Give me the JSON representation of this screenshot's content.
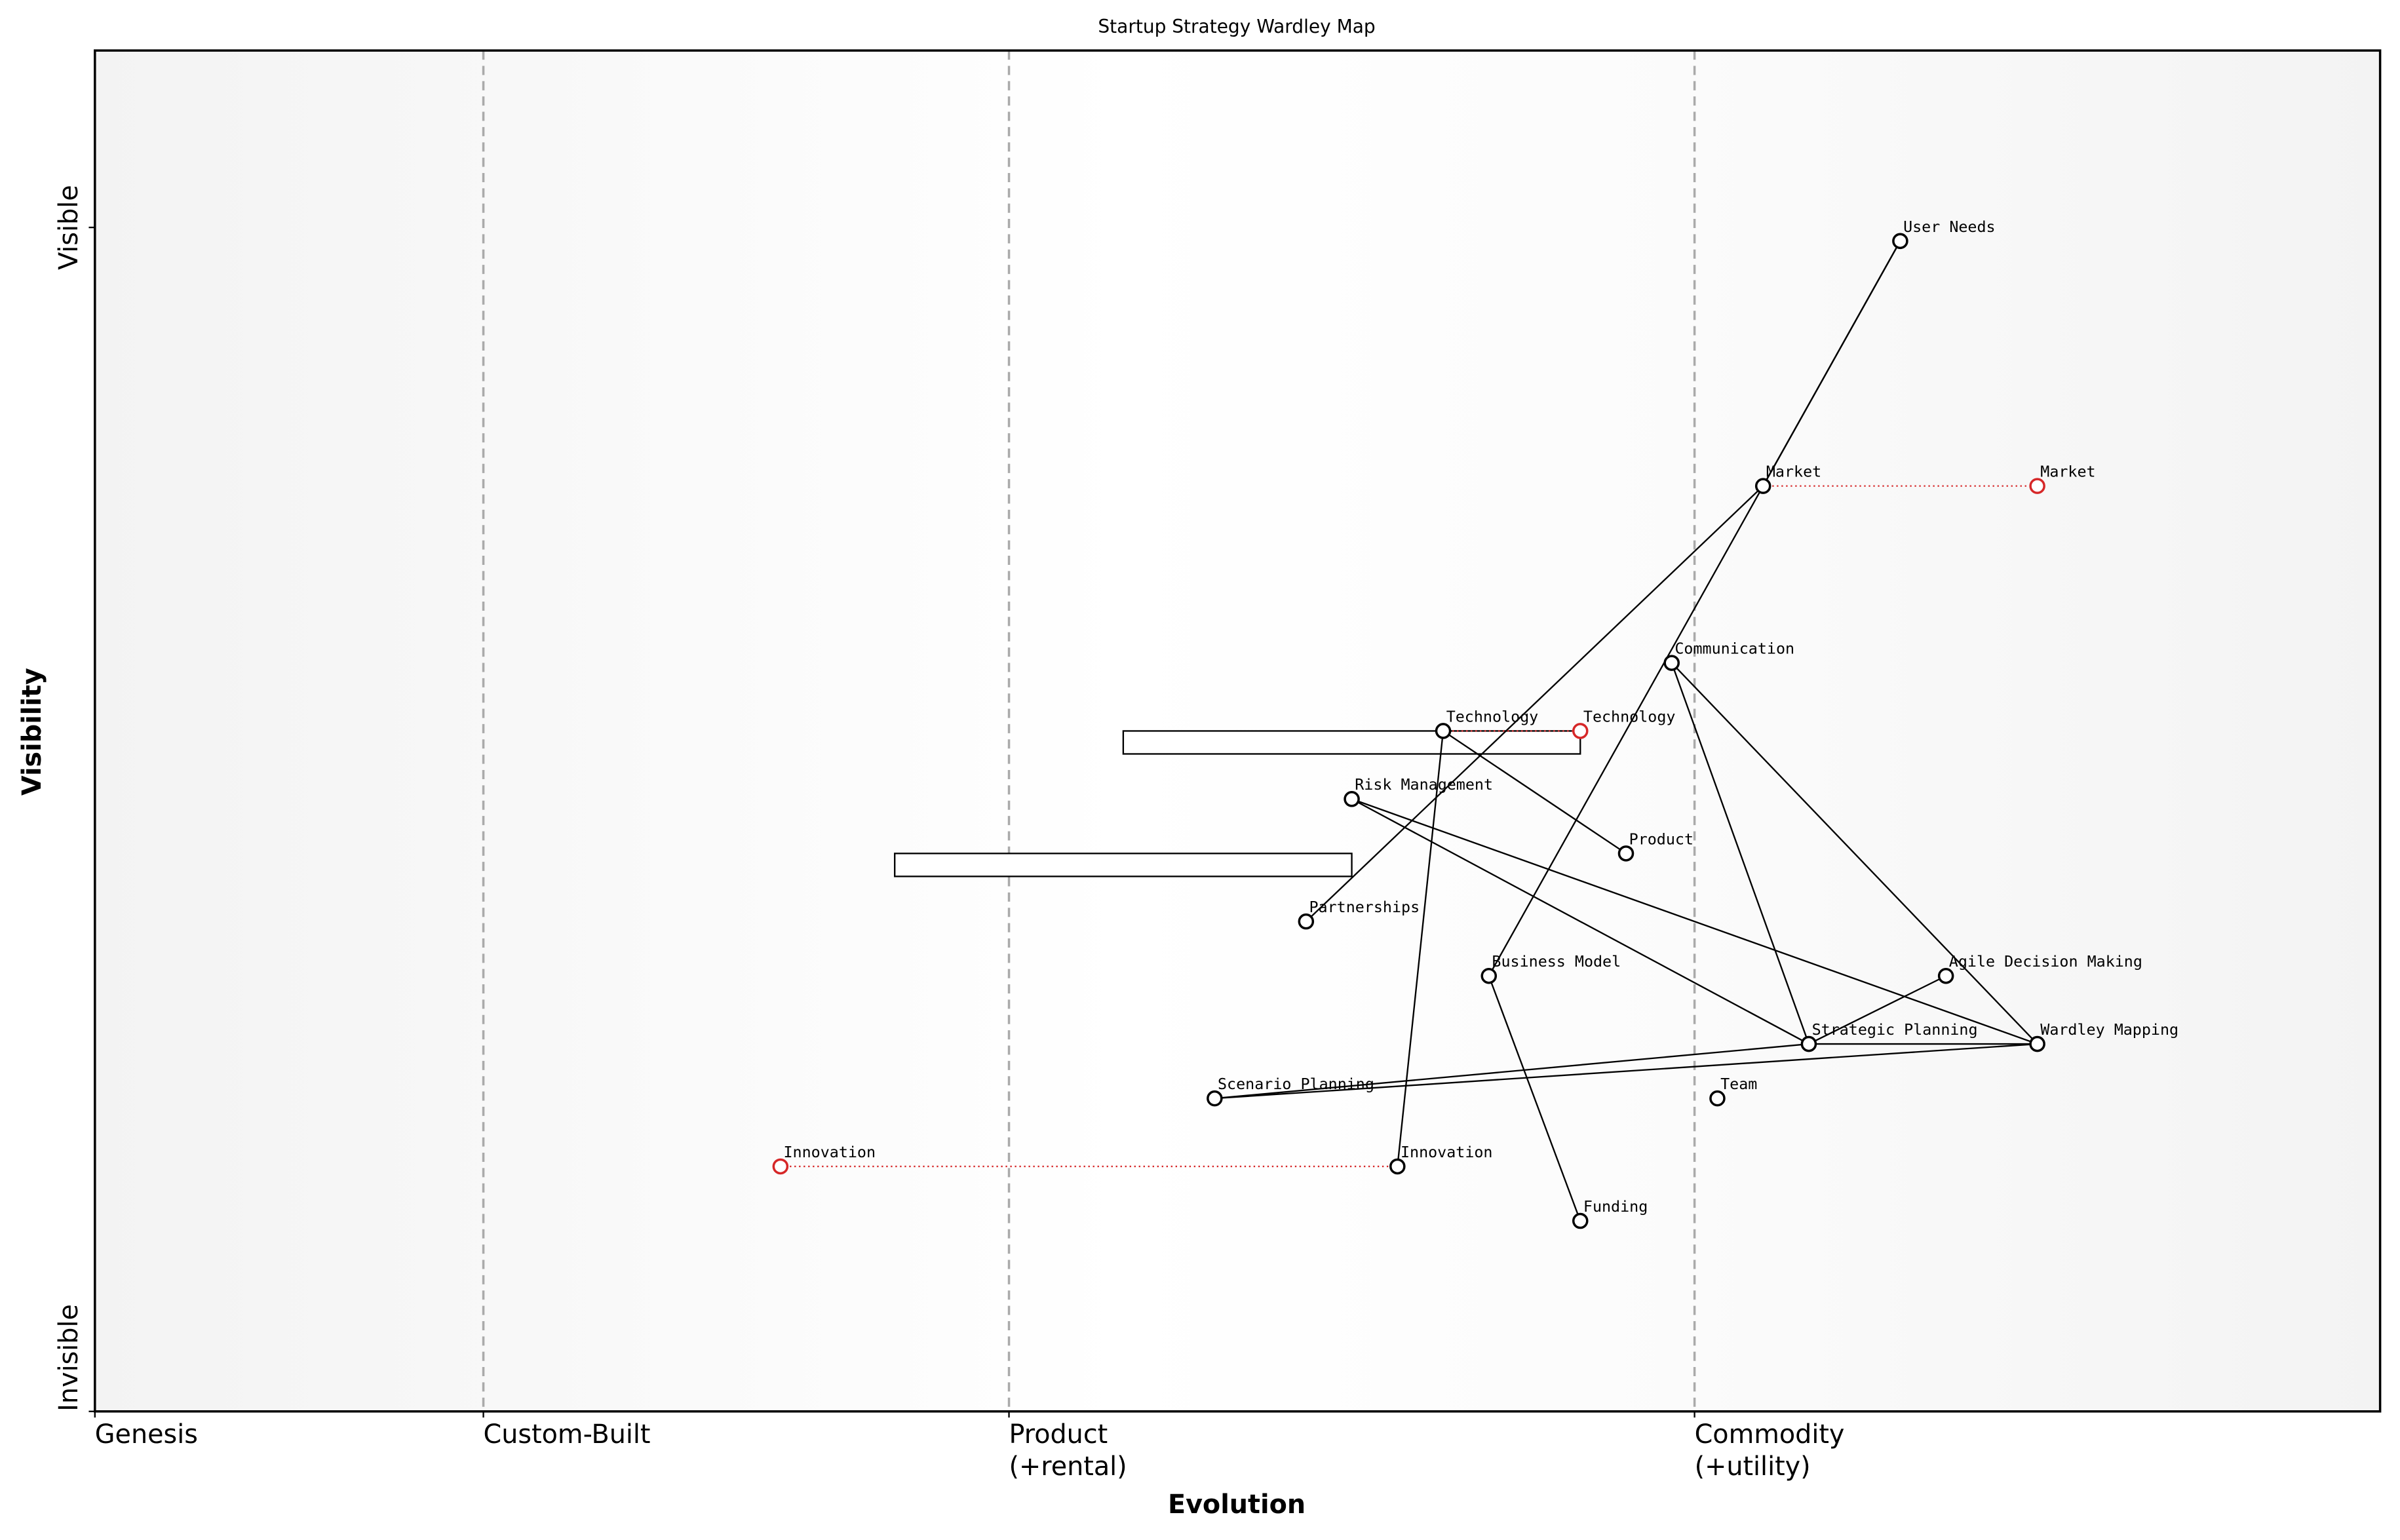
{
  "chart_data": {
    "type": "wardley",
    "title": "Startup Strategy Wardley Map",
    "xlabel": "Evolution",
    "ylabel": "Visibility",
    "xlim": [
      0,
      1
    ],
    "ylim": [
      0,
      1
    ],
    "xticks": [
      {
        "value": 0,
        "label": [
          "Genesis"
        ]
      },
      {
        "value": 0.17,
        "label": [
          "Custom-Built"
        ]
      },
      {
        "value": 0.4,
        "label": [
          "Product",
          "(+rental)"
        ]
      },
      {
        "value": 0.7,
        "label": [
          "Commodity",
          "(+utility)"
        ]
      }
    ],
    "yticks": [
      {
        "value": 0,
        "label": "Invisible"
      },
      {
        "value": 0.87,
        "label": "Visible"
      }
    ],
    "stage_lines": [
      0.17,
      0.4,
      0.7
    ],
    "evolve_color": "#d62728",
    "components": [
      {
        "name": "User Needs",
        "evolution": 0.79,
        "visibility": 0.86
      },
      {
        "name": "Market",
        "evolution": 0.73,
        "visibility": 0.68,
        "evolve_to": 0.85
      },
      {
        "name": "Communication",
        "evolution": 0.69,
        "visibility": 0.55
      },
      {
        "name": "Technology",
        "evolution": 0.59,
        "visibility": 0.5,
        "evolve_to": 0.65,
        "pipeline": [
          0.45,
          0.65
        ]
      },
      {
        "name": "Risk Management",
        "evolution": 0.55,
        "visibility": 0.45
      },
      {
        "name": "Product",
        "evolution": 0.67,
        "visibility": 0.41,
        "pipeline": [
          0.35,
          0.55
        ]
      },
      {
        "name": "Partnerships",
        "evolution": 0.53,
        "visibility": 0.36
      },
      {
        "name": "Business Model",
        "evolution": 0.61,
        "visibility": 0.32
      },
      {
        "name": "Agile Decision Making",
        "evolution": 0.81,
        "visibility": 0.32
      },
      {
        "name": "Strategic Planning",
        "evolution": 0.75,
        "visibility": 0.27
      },
      {
        "name": "Wardley Mapping",
        "evolution": 0.85,
        "visibility": 0.27
      },
      {
        "name": "Scenario Planning",
        "evolution": 0.49,
        "visibility": 0.23
      },
      {
        "name": "Team",
        "evolution": 0.71,
        "visibility": 0.23
      },
      {
        "name": "Innovation",
        "evolution": 0.57,
        "visibility": 0.18,
        "evolve_to": 0.3
      },
      {
        "name": "Funding",
        "evolution": 0.65,
        "visibility": 0.14
      }
    ],
    "links": [
      [
        "User Needs",
        "Market"
      ],
      [
        "User Needs",
        "Business Model"
      ],
      [
        "Market",
        "Partnerships"
      ],
      [
        "Communication",
        "Strategic Planning"
      ],
      [
        "Communication",
        "Wardley Mapping"
      ],
      [
        "Technology",
        "Innovation"
      ],
      [
        "Technology",
        "Product"
      ],
      [
        "Risk Management",
        "Strategic Planning"
      ],
      [
        "Risk Management",
        "Wardley Mapping"
      ],
      [
        "Business Model",
        "Funding"
      ],
      [
        "Strategic Planning",
        "Agile Decision Making"
      ],
      [
        "Strategic Planning",
        "Scenario Planning"
      ],
      [
        "Strategic Planning",
        "Wardley Mapping"
      ],
      [
        "Scenario Planning",
        "Wardley Mapping"
      ]
    ]
  }
}
